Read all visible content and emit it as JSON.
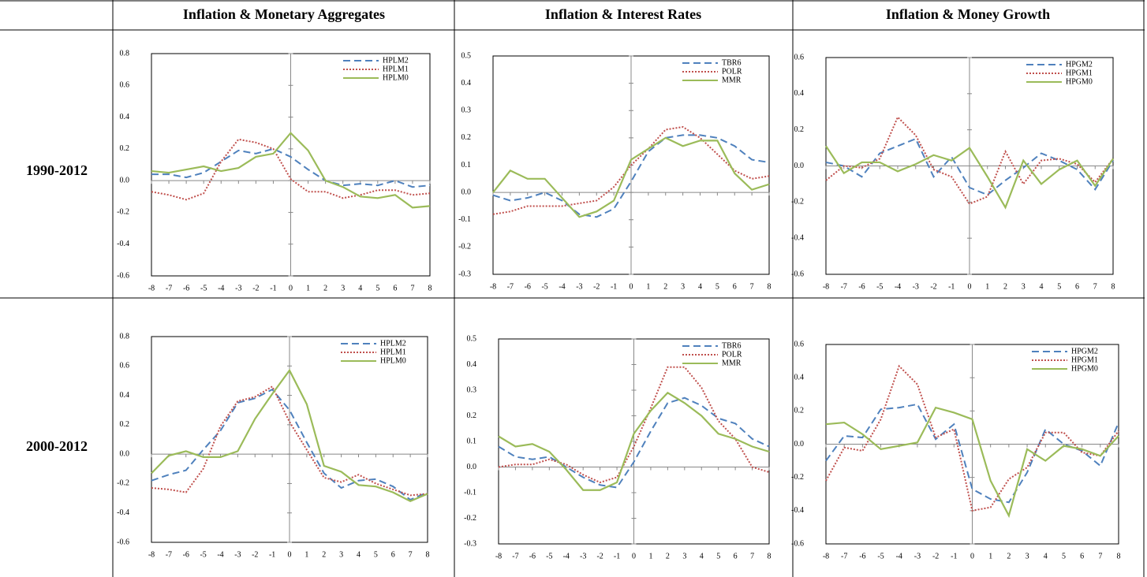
{
  "table": {
    "columns": [
      "Inflation & Monetary Aggregates",
      "Inflation & Interest Rates",
      "Inflation & Money Growth"
    ],
    "rows": [
      "1990-2012",
      "2000-2012"
    ]
  },
  "chart_data": [
    {
      "type": "line",
      "legend": "upper right",
      "x": [
        -8,
        -7,
        -6,
        -5,
        -4,
        -3,
        -2,
        -1,
        0,
        1,
        2,
        3,
        4,
        5,
        6,
        7,
        8
      ],
      "xlim": [
        -8,
        8
      ],
      "xticks": [
        -8,
        -7,
        -6,
        -5,
        -4,
        -3,
        -2,
        -1,
        0,
        1,
        2,
        3,
        4,
        5,
        6,
        7,
        8
      ],
      "ylim": [
        -0.6,
        0.8
      ],
      "yticks": [
        -0.6,
        -0.4,
        -0.2,
        {
          "value": 0,
          "label": "0.0"
        },
        0.2,
        0.4,
        0.6,
        0.8
      ],
      "series": [
        {
          "name": "HPLM2",
          "color": "#4f81bd",
          "dash": "dashed",
          "values": [
            0.04,
            0.04,
            0.02,
            0.05,
            0.12,
            0.19,
            0.17,
            0.2,
            0.15,
            0.07,
            0.0,
            -0.03,
            -0.02,
            -0.03,
            0.0,
            -0.04,
            -0.03
          ]
        },
        {
          "name": "HPLM1",
          "color": "#c0504d",
          "dash": "dotted",
          "values": [
            -0.07,
            -0.09,
            -0.12,
            -0.08,
            0.12,
            0.26,
            0.24,
            0.2,
            0.01,
            -0.07,
            -0.07,
            -0.11,
            -0.09,
            -0.06,
            -0.06,
            -0.09,
            -0.08
          ]
        },
        {
          "name": "HPLM0",
          "color": "#9bbb59",
          "dash": "solid",
          "values": [
            0.06,
            0.05,
            0.07,
            0.09,
            0.06,
            0.08,
            0.15,
            0.17,
            0.3,
            0.19,
            0.0,
            -0.04,
            -0.1,
            -0.11,
            -0.09,
            -0.17,
            -0.16
          ]
        }
      ]
    },
    {
      "type": "line",
      "legend": "upper right",
      "x": [
        -8,
        -7,
        -6,
        -5,
        -4,
        -3,
        -2,
        -1,
        0,
        1,
        2,
        3,
        4,
        5,
        6,
        7,
        8
      ],
      "xlim": [
        -8,
        8
      ],
      "xticks": [
        -8,
        -7,
        -6,
        -5,
        -4,
        -3,
        -2,
        -1,
        0,
        1,
        2,
        3,
        4,
        5,
        6,
        7,
        8
      ],
      "ylim": [
        -0.3,
        0.5
      ],
      "yticks": [
        -0.3,
        -0.2,
        -0.1,
        {
          "value": 0,
          "label": "0.0"
        },
        0.1,
        0.2,
        0.3,
        0.4,
        0.5
      ],
      "series": [
        {
          "name": "TBR6",
          "color": "#4f81bd",
          "dash": "dashed",
          "values": [
            -0.01,
            -0.03,
            -0.02,
            0.0,
            -0.03,
            -0.08,
            -0.09,
            -0.06,
            0.04,
            0.15,
            0.2,
            0.21,
            0.21,
            0.2,
            0.17,
            0.12,
            0.11
          ]
        },
        {
          "name": "POLR",
          "color": "#c0504d",
          "dash": "dotted",
          "values": [
            -0.08,
            -0.07,
            -0.05,
            -0.05,
            -0.05,
            -0.04,
            -0.03,
            0.02,
            0.1,
            0.16,
            0.23,
            0.24,
            0.2,
            0.14,
            0.08,
            0.05,
            0.06
          ]
        },
        {
          "name": "MMR",
          "color": "#9bbb59",
          "dash": "solid",
          "values": [
            0.0,
            0.08,
            0.05,
            0.05,
            -0.02,
            -0.09,
            -0.07,
            -0.03,
            0.12,
            0.16,
            0.2,
            0.17,
            0.19,
            0.19,
            0.07,
            0.01,
            0.03
          ]
        }
      ]
    },
    {
      "type": "line",
      "legend": "upper right",
      "x": [
        -8,
        -7,
        -6,
        -5,
        -4,
        -3,
        -2,
        -1,
        0,
        1,
        2,
        3,
        4,
        5,
        6,
        7,
        8
      ],
      "xlim": [
        -8,
        8
      ],
      "xticks": [
        -8,
        -7,
        -6,
        -5,
        -4,
        -3,
        -2,
        -1,
        0,
        1,
        2,
        3,
        4,
        5,
        6,
        7,
        8
      ],
      "ylim": [
        -0.6,
        0.6
      ],
      "yticks": [
        -0.6,
        -0.4,
        -0.2,
        {
          "value": 0,
          "label": "0.0"
        },
        0.2,
        0.4,
        0.6
      ],
      "series": [
        {
          "name": "HPGM2",
          "color": "#4f81bd",
          "dash": "dashed",
          "values": [
            0.02,
            0.0,
            -0.06,
            0.07,
            0.11,
            0.15,
            -0.06,
            0.05,
            -0.12,
            -0.16,
            -0.08,
            -0.01,
            0.07,
            0.03,
            -0.02,
            -0.13,
            0.03
          ]
        },
        {
          "name": "HPGM1",
          "color": "#c0504d",
          "dash": "dotted",
          "values": [
            -0.08,
            0.0,
            -0.01,
            0.04,
            0.27,
            0.17,
            -0.02,
            -0.06,
            -0.21,
            -0.17,
            0.08,
            -0.1,
            0.03,
            0.04,
            0.01,
            -0.09,
            0.04
          ]
        },
        {
          "name": "HPGM0",
          "color": "#9bbb59",
          "dash": "solid",
          "values": [
            0.11,
            -0.04,
            0.02,
            0.02,
            -0.03,
            0.01,
            0.06,
            0.03,
            0.1,
            -0.06,
            -0.23,
            0.03,
            -0.1,
            -0.02,
            0.03,
            -0.11,
            0.04
          ]
        }
      ]
    },
    {
      "type": "line",
      "legend": "upper right",
      "x": [
        -8,
        -7,
        -6,
        -5,
        -4,
        -3,
        -2,
        -1,
        0,
        1,
        2,
        3,
        4,
        5,
        6,
        7,
        8
      ],
      "xlim": [
        -8,
        8
      ],
      "xticks": [
        -8,
        -7,
        -6,
        -5,
        -4,
        -3,
        -2,
        -1,
        0,
        1,
        2,
        3,
        4,
        5,
        6,
        7,
        8
      ],
      "ylim": [
        -0.6,
        0.8
      ],
      "yticks": [
        -0.6,
        -0.4,
        -0.2,
        {
          "value": 0,
          "label": "0.0"
        },
        0.2,
        0.4,
        0.6,
        0.8
      ],
      "series": [
        {
          "name": "HPLM2",
          "color": "#4f81bd",
          "dash": "dashed",
          "values": [
            -0.18,
            -0.14,
            -0.11,
            0.03,
            0.16,
            0.35,
            0.38,
            0.44,
            0.3,
            0.08,
            -0.13,
            -0.23,
            -0.18,
            -0.17,
            -0.22,
            -0.31,
            -0.26
          ]
        },
        {
          "name": "HPLM1",
          "color": "#c0504d",
          "dash": "dotted",
          "values": [
            -0.23,
            -0.24,
            -0.26,
            -0.1,
            0.19,
            0.36,
            0.39,
            0.46,
            0.22,
            0.03,
            -0.16,
            -0.19,
            -0.14,
            -0.2,
            -0.24,
            -0.28,
            -0.27
          ]
        },
        {
          "name": "HPLM0",
          "color": "#9bbb59",
          "dash": "solid",
          "values": [
            -0.13,
            -0.01,
            0.02,
            -0.02,
            -0.02,
            0.02,
            0.24,
            0.41,
            0.57,
            0.34,
            -0.08,
            -0.12,
            -0.21,
            -0.22,
            -0.26,
            -0.32,
            -0.27
          ]
        }
      ]
    },
    {
      "type": "line",
      "legend": "upper right",
      "x": [
        -8,
        -7,
        -6,
        -5,
        -4,
        -3,
        -2,
        -1,
        0,
        1,
        2,
        3,
        4,
        5,
        6,
        7,
        8
      ],
      "xlim": [
        -8,
        8
      ],
      "xticks": [
        -8,
        -7,
        -6,
        -5,
        -4,
        -3,
        -2,
        -1,
        0,
        1,
        2,
        3,
        4,
        5,
        6,
        7,
        8
      ],
      "ylim": [
        -0.3,
        0.5
      ],
      "yticks": [
        -0.3,
        -0.2,
        -0.1,
        {
          "value": 0,
          "label": "0.0"
        },
        0.1,
        0.2,
        0.3,
        0.4,
        0.5
      ],
      "series": [
        {
          "name": "TBR6",
          "color": "#4f81bd",
          "dash": "dashed",
          "values": [
            0.08,
            0.04,
            0.03,
            0.04,
            0.0,
            -0.04,
            -0.07,
            -0.08,
            0.02,
            0.14,
            0.25,
            0.27,
            0.24,
            0.19,
            0.17,
            0.11,
            0.08
          ]
        },
        {
          "name": "POLR",
          "color": "#c0504d",
          "dash": "dotted",
          "values": [
            0.0,
            0.01,
            0.01,
            0.03,
            0.01,
            -0.03,
            -0.06,
            -0.04,
            0.08,
            0.23,
            0.39,
            0.39,
            0.31,
            0.18,
            0.11,
            0.0,
            -0.02
          ]
        },
        {
          "name": "MMR",
          "color": "#9bbb59",
          "dash": "solid",
          "values": [
            0.12,
            0.08,
            0.09,
            0.06,
            -0.01,
            -0.09,
            -0.09,
            -0.06,
            0.13,
            0.22,
            0.29,
            0.25,
            0.2,
            0.13,
            0.11,
            0.08,
            0.06
          ]
        }
      ]
    },
    {
      "type": "line",
      "legend": "upper right",
      "x": [
        -8,
        -7,
        -6,
        -5,
        -4,
        -3,
        -2,
        -1,
        0,
        1,
        2,
        3,
        4,
        5,
        6,
        7,
        8
      ],
      "xlim": [
        -8,
        8
      ],
      "xticks": [
        -8,
        -7,
        -6,
        -5,
        -4,
        -3,
        -2,
        -1,
        0,
        1,
        2,
        3,
        4,
        5,
        6,
        7,
        8
      ],
      "ylim": [
        -0.6,
        0.6
      ],
      "yticks": [
        -0.6,
        -0.4,
        -0.2,
        {
          "value": 0,
          "label": "0.0"
        },
        0.2,
        0.4,
        0.6
      ],
      "series": [
        {
          "name": "HPGM2",
          "color": "#4f81bd",
          "dash": "dashed",
          "values": [
            -0.1,
            0.05,
            0.04,
            0.21,
            0.22,
            0.24,
            0.03,
            0.12,
            -0.27,
            -0.33,
            -0.35,
            -0.17,
            0.09,
            0.0,
            -0.04,
            -0.13,
            0.13
          ]
        },
        {
          "name": "HPGM1",
          "color": "#c0504d",
          "dash": "dotted",
          "values": [
            -0.22,
            -0.02,
            -0.04,
            0.15,
            0.47,
            0.36,
            0.04,
            0.09,
            -0.4,
            -0.38,
            -0.21,
            -0.14,
            0.07,
            0.07,
            -0.05,
            -0.07,
            0.08
          ]
        },
        {
          "name": "HPGM0",
          "color": "#9bbb59",
          "dash": "solid",
          "values": [
            0.12,
            0.13,
            0.06,
            -0.03,
            -0.01,
            0.01,
            0.22,
            0.19,
            0.15,
            -0.22,
            -0.43,
            -0.03,
            -0.1,
            -0.01,
            -0.03,
            -0.07,
            0.05
          ]
        }
      ]
    }
  ]
}
